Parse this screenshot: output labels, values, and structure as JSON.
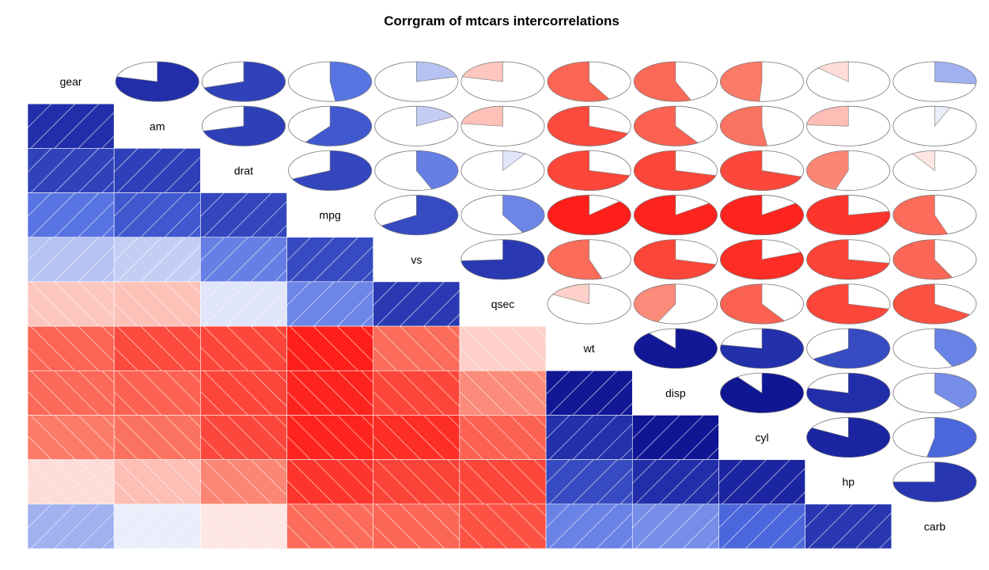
{
  "chart_data": {
    "type": "heatmap",
    "title": "Corrgram of mtcars intercorrelations",
    "variables": [
      "gear",
      "am",
      "drat",
      "mpg",
      "vs",
      "qsec",
      "wt",
      "disp",
      "cyl",
      "hp",
      "carb"
    ],
    "matrix": [
      [
        1.0,
        0.79,
        0.7,
        0.48,
        0.21,
        -0.21,
        -0.58,
        -0.56,
        -0.49,
        -0.13,
        0.27
      ],
      [
        0.79,
        1.0,
        0.71,
        0.6,
        0.17,
        -0.23,
        -0.69,
        -0.59,
        -0.52,
        -0.24,
        0.06
      ],
      [
        0.7,
        0.71,
        1.0,
        0.68,
        0.44,
        0.09,
        -0.71,
        -0.71,
        -0.7,
        -0.45,
        -0.09
      ],
      [
        0.48,
        0.6,
        0.68,
        1.0,
        0.66,
        0.42,
        -0.87,
        -0.85,
        -0.85,
        -0.78,
        -0.55
      ],
      [
        0.21,
        0.17,
        0.44,
        0.66,
        1.0,
        0.74,
        -0.55,
        -0.71,
        -0.81,
        -0.72,
        -0.57
      ],
      [
        -0.21,
        -0.23,
        0.09,
        0.42,
        0.74,
        1.0,
        -0.17,
        -0.43,
        -0.59,
        -0.71,
        -0.66
      ],
      [
        -0.58,
        -0.69,
        -0.71,
        -0.87,
        -0.55,
        -0.17,
        1.0,
        0.89,
        0.78,
        0.66,
        0.43
      ],
      [
        -0.56,
        -0.59,
        -0.71,
        -0.85,
        -0.71,
        -0.43,
        0.89,
        1.0,
        0.9,
        0.79,
        0.39
      ],
      [
        -0.49,
        -0.52,
        -0.7,
        -0.85,
        -0.81,
        -0.59,
        0.78,
        0.9,
        1.0,
        0.83,
        0.53
      ],
      [
        -0.13,
        -0.24,
        -0.45,
        -0.78,
        -0.72,
        -0.71,
        0.66,
        0.79,
        0.83,
        1.0,
        0.75
      ],
      [
        0.27,
        0.06,
        -0.09,
        -0.55,
        -0.57,
        -0.66,
        0.43,
        0.39,
        0.53,
        0.75,
        1.0
      ]
    ],
    "lower_panel": "shade",
    "upper_panel": "pie",
    "diagonal_panel": "text",
    "color_scale": {
      "negative": "#ff0000",
      "neutral": "#ffffff",
      "positive": "#000080"
    }
  }
}
